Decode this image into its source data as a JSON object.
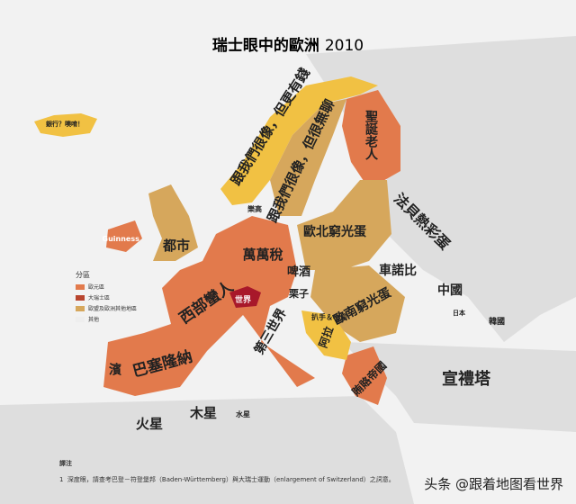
{
  "title": "瑞士眼中的歐洲",
  "year": "2010",
  "legend": {
    "title": "分區",
    "items": [
      {
        "label": "歐元區",
        "color": "#e27a4c"
      },
      {
        "label": "大瑞士區",
        "color": "#b8452e"
      },
      {
        "label": "歐盟及歐洲其他地區",
        "color": "#d6a75c"
      },
      {
        "label": "其他",
        "color": "#eeeeee"
      }
    ]
  },
  "labels": [
    "銀行？噢唷！",
    "跟我們很像，但更有錢",
    "跟我們很像，但很無聊",
    "聖誕老人",
    "Guinness",
    "都市",
    "樂高",
    "萬萬稅",
    "西部蠻人",
    "世界",
    "栗子",
    "啤酒",
    "歐北窮光蛋",
    "歐南窮光蛋",
    "第三世界",
    "巴塞隆納",
    "濱",
    "扒手＆小偷",
    "阿拉",
    "賄賂帝國",
    "法貝熱彩蛋",
    "車諾比",
    "中國",
    "日本",
    "韓國",
    "宣禮塔",
    "火星",
    "木星",
    "水星"
  ],
  "footnote": {
    "heading": "譯注",
    "number": "1",
    "text": "深度眼，請查考巴登－符登堡邦（Baden-Württemberg）與大瑞士運動（enlargement of Switzerland）之詞意。"
  },
  "watermark": "头条 @跟着地图看世界"
}
